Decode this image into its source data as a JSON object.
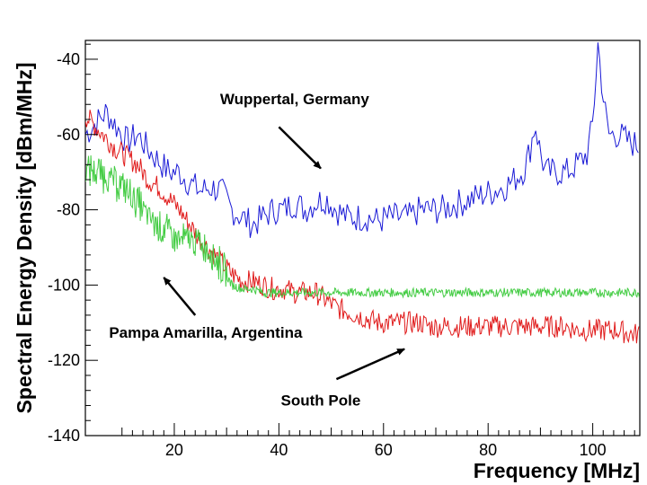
{
  "chart_data": {
    "type": "line",
    "title": "",
    "xlabel": "Frequency [MHz]",
    "ylabel": "Spectral Energy Density [dBm/MHz]",
    "xlim": [
      3,
      109
    ],
    "ylim": [
      -140,
      -35
    ],
    "xticks": [
      20,
      40,
      60,
      80,
      100
    ],
    "yticks": [
      -140,
      -120,
      -100,
      -80,
      -60,
      -40
    ],
    "grid": false,
    "legend": "none",
    "series": [
      {
        "name": "Wuppertal, Germany",
        "color": "#1a1ad6",
        "x": [
          3,
          5,
          7,
          9,
          11,
          13,
          15,
          17,
          19,
          21,
          23,
          25,
          27,
          29,
          31,
          33,
          35,
          37,
          39,
          41,
          43,
          45,
          47,
          49,
          51,
          53,
          55,
          57,
          59,
          61,
          63,
          65,
          67,
          69,
          71,
          73,
          75,
          77,
          79,
          81,
          83,
          85,
          87,
          88,
          89,
          90,
          91,
          93,
          95,
          97,
          99,
          100,
          101,
          102,
          103,
          105,
          107,
          109
        ],
        "y": [
          -60,
          -57,
          -54,
          -58,
          -62,
          -60,
          -64,
          -67,
          -70,
          -70,
          -73,
          -75,
          -74,
          -75,
          -80,
          -82,
          -84,
          -82,
          -80,
          -80,
          -78,
          -80,
          -78,
          -77,
          -80,
          -82,
          -82,
          -82,
          -83,
          -82,
          -82,
          -82,
          -80,
          -80,
          -80,
          -79,
          -78,
          -77,
          -76,
          -75,
          -74,
          -72,
          -69,
          -64,
          -57,
          -65,
          -70,
          -70,
          -70,
          -68,
          -65,
          -57,
          -36,
          -50,
          -60,
          -60,
          -62,
          -63
        ]
      },
      {
        "name": "South Pole",
        "color": "#e01a1a",
        "x": [
          3,
          5,
          7,
          9,
          11,
          13,
          15,
          17,
          19,
          21,
          23,
          25,
          27,
          29,
          31,
          33,
          35,
          37,
          39,
          41,
          43,
          45,
          47,
          49,
          51,
          53,
          55,
          57,
          59,
          61,
          63,
          65,
          67,
          69,
          71,
          73,
          75,
          77,
          79,
          81,
          83,
          85,
          87,
          89,
          91,
          93,
          95,
          97,
          99,
          101,
          103,
          105,
          107,
          109
        ],
        "y": [
          -55,
          -58,
          -61,
          -64,
          -66,
          -68,
          -72,
          -74,
          -77,
          -80,
          -84,
          -88,
          -91,
          -94,
          -97,
          -99,
          -99,
          -100,
          -101,
          -101,
          -102,
          -102,
          -102,
          -104,
          -106,
          -107,
          -108,
          -109,
          -110,
          -110,
          -110,
          -110,
          -110,
          -111,
          -111,
          -111,
          -111,
          -111,
          -111,
          -111,
          -111,
          -111,
          -111,
          -111,
          -111,
          -111,
          -111,
          -112,
          -112,
          -112,
          -112,
          -112,
          -113,
          -113
        ]
      },
      {
        "name": "Pampa Amarilla, Argentina",
        "color": "#44cc44",
        "x": [
          3,
          5,
          7,
          9,
          11,
          13,
          15,
          17,
          19,
          21,
          23,
          25,
          27,
          29,
          31,
          33,
          35,
          37,
          39,
          41,
          43,
          45,
          47,
          49,
          51,
          53,
          55,
          57,
          59,
          61,
          63,
          65,
          67,
          69,
          71,
          73,
          75,
          77,
          79,
          81,
          83,
          85,
          87,
          89,
          91,
          93,
          95,
          97,
          99,
          101,
          103,
          105,
          107,
          109
        ],
        "y": [
          -69,
          -70,
          -71,
          -73,
          -75,
          -78,
          -82,
          -84,
          -86,
          -88,
          -88,
          -89,
          -91,
          -95,
          -100,
          -101,
          -101,
          -102,
          -102,
          -102,
          -102,
          -102,
          -102,
          -102,
          -102,
          -102,
          -102,
          -102,
          -102,
          -102,
          -102,
          -102,
          -102,
          -102,
          -102,
          -102,
          -102,
          -102,
          -102,
          -102,
          -102,
          -102,
          -102,
          -102,
          -102,
          -102,
          -102,
          -102,
          -102,
          -102,
          -102,
          -102,
          -102,
          -102
        ]
      }
    ],
    "annotations": [
      {
        "text": "Wuppertal, Germany",
        "text_at": [
          43,
          -52
        ],
        "arrow_from": [
          40,
          -58
        ],
        "arrow_to": [
          48,
          -69
        ]
      },
      {
        "text": "Pampa Amarilla, Argentina",
        "text_at": [
          26,
          -114
        ],
        "arrow_from": [
          24,
          -108
        ],
        "arrow_to": [
          18,
          -98
        ]
      },
      {
        "text": "South Pole",
        "text_at": [
          48,
          -132
        ],
        "arrow_from": [
          51,
          -125
        ],
        "arrow_to": [
          64,
          -117
        ]
      }
    ]
  }
}
